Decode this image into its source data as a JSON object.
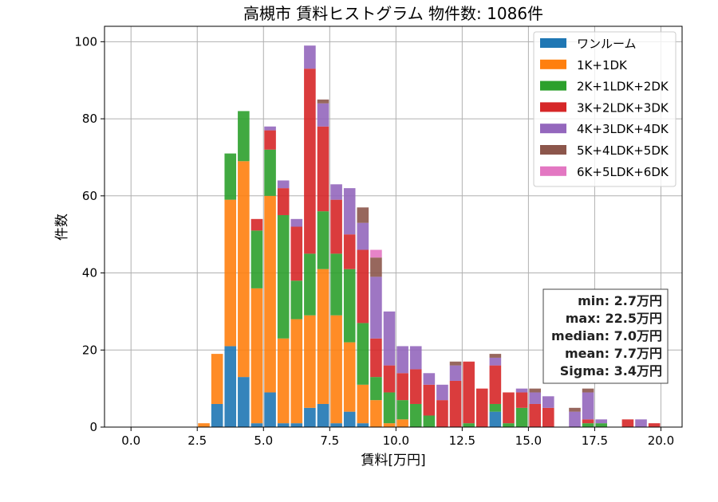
{
  "chart_data": {
    "type": "bar",
    "stacked": true,
    "title": "高槻市 賃料ヒストグラム 物件数: 1086件",
    "xlabel": "賃料[万円]",
    "ylabel": "件数",
    "xlim": [
      -1.0,
      20.8
    ],
    "ylim": [
      0,
      104
    ],
    "xticks": [
      "0.0",
      "2.5",
      "5.0",
      "7.5",
      "10.0",
      "12.5",
      "15.0",
      "17.5",
      "20.0"
    ],
    "yticks": [
      "0",
      "20",
      "40",
      "60",
      "80",
      "100"
    ],
    "grid": true,
    "legend_position": "top-right",
    "bin_width": 0.5,
    "x": [
      2.5,
      3.0,
      3.5,
      4.0,
      4.5,
      5.0,
      5.5,
      6.0,
      6.5,
      7.0,
      7.5,
      8.0,
      8.5,
      9.0,
      9.5,
      10.0,
      10.5,
      11.0,
      11.5,
      12.0,
      12.5,
      13.0,
      13.5,
      14.0,
      14.5,
      15.0,
      15.5,
      16.0,
      16.5,
      17.0,
      17.5,
      18.0,
      18.5,
      19.0,
      19.5
    ],
    "series": [
      {
        "name": "ワンルーム",
        "color": "#1f77b4",
        "values": [
          0,
          6,
          21,
          13,
          1,
          9,
          1,
          1,
          5,
          6,
          1,
          4,
          1,
          0,
          0,
          0,
          0,
          0,
          0,
          0,
          0,
          0,
          4,
          0,
          0,
          0,
          0,
          0,
          0,
          0,
          0,
          0,
          0,
          0,
          0
        ]
      },
      {
        "name": "1K+1DK",
        "color": "#ff7f0e",
        "values": [
          1,
          13,
          38,
          56,
          35,
          51,
          22,
          27,
          24,
          35,
          28,
          18,
          10,
          7,
          1,
          2,
          0,
          0,
          0,
          0,
          0,
          0,
          0,
          0,
          0,
          0,
          0,
          0,
          0,
          0,
          0,
          0,
          0,
          0,
          0
        ]
      },
      {
        "name": "2K+1LDK+2DK",
        "color": "#2ca02c",
        "values": [
          0,
          0,
          12,
          13,
          15,
          12,
          32,
          10,
          16,
          15,
          16,
          19,
          16,
          6,
          8,
          5,
          6,
          3,
          0,
          0,
          1,
          0,
          2,
          1,
          5,
          0,
          0,
          0,
          0,
          1,
          1,
          0,
          0,
          0,
          0
        ]
      },
      {
        "name": "3K+2LDK+3DK",
        "color": "#d62728",
        "values": [
          0,
          0,
          0,
          0,
          3,
          5,
          7,
          14,
          48,
          22,
          14,
          9,
          19,
          10,
          7,
          7,
          9,
          8,
          7,
          12,
          16,
          10,
          10,
          8,
          4,
          6,
          5,
          0,
          0,
          1,
          0,
          0,
          2,
          0,
          1
        ]
      },
      {
        "name": "4K+3LDK+4DK",
        "color": "#9467bd",
        "values": [
          0,
          0,
          0,
          0,
          0,
          1,
          2,
          2,
          6,
          6,
          4,
          12,
          7,
          16,
          14,
          7,
          6,
          3,
          4,
          4,
          0,
          0,
          2,
          0,
          1,
          3,
          3,
          0,
          4,
          7,
          1,
          0,
          0,
          2,
          0
        ]
      },
      {
        "name": "5K+4LDK+5DK",
        "color": "#8c564b",
        "values": [
          0,
          0,
          0,
          0,
          0,
          0,
          0,
          0,
          0,
          1,
          0,
          0,
          4,
          5,
          0,
          0,
          0,
          0,
          0,
          1,
          0,
          0,
          1,
          0,
          0,
          1,
          0,
          0,
          1,
          1,
          0,
          0,
          0,
          0,
          0
        ]
      },
      {
        "name": "6K+5LDK+6DK",
        "color": "#e377c2",
        "values": [
          0,
          0,
          0,
          0,
          0,
          0,
          0,
          0,
          0,
          0,
          0,
          0,
          0,
          2,
          0,
          0,
          0,
          0,
          0,
          0,
          0,
          0,
          0,
          0,
          0,
          0,
          0,
          0,
          0,
          0,
          0,
          0,
          0,
          0,
          0
        ]
      }
    ],
    "stats": [
      "min: 2.7万円",
      "max: 22.5万円",
      "median: 7.0万円",
      "mean: 7.7万円",
      "Sigma: 3.4万円"
    ]
  }
}
